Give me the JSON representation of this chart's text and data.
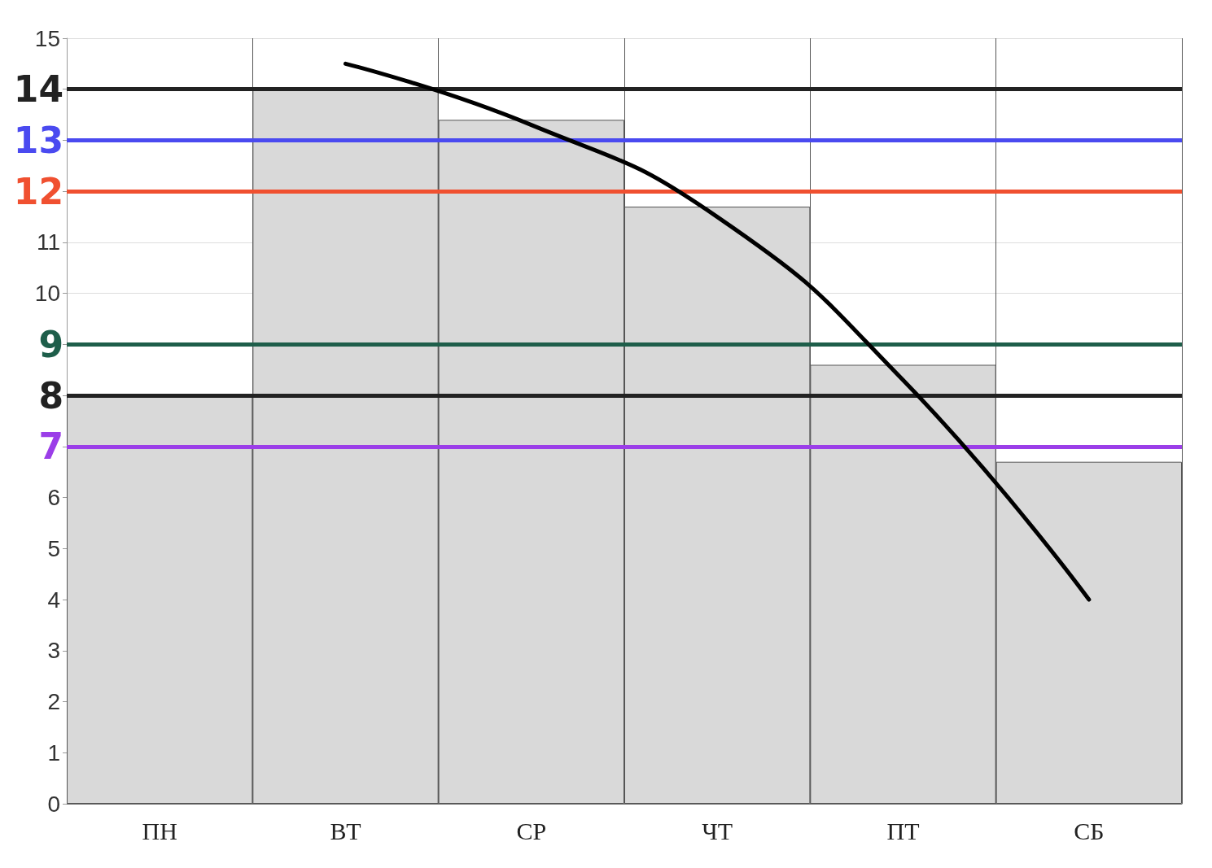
{
  "chart_data": {
    "type": "bar",
    "categories": [
      "ПН",
      "ВТ",
      "СР",
      "ЧТ",
      "ПТ",
      "СБ"
    ],
    "series": [
      {
        "color": "#d9d9d9",
        "values": [
          8,
          14,
          13.4,
          11.7,
          8.6,
          6.7
        ]
      },
      {
        "type": "line",
        "color": "#000000",
        "values": [
          null,
          14.5,
          13.3,
          11.5,
          8.3,
          4
        ],
        "marker": "none",
        "line_style": "solid"
      }
    ],
    "ylim": [
      0,
      15
    ],
    "yticks": [
      0,
      1,
      2,
      3,
      4,
      5,
      6,
      {
        "value": 7,
        "label": null
      },
      {
        "value": 8,
        "label": null
      },
      {
        "value": 9,
        "label": null
      },
      10,
      11,
      {
        "value": 12,
        "label": null
      },
      {
        "value": 13,
        "label": null
      },
      {
        "value": 14,
        "label": null
      },
      15
    ],
    "ref_lines": [
      {
        "axis": "y",
        "value": 14,
        "label": "14",
        "color": "#222222"
      },
      {
        "axis": "y",
        "value": 13,
        "label": "13",
        "color": "#4a4af0"
      },
      {
        "axis": "y",
        "value": 12,
        "label": "12",
        "color": "#f05030"
      },
      {
        "axis": "y",
        "value": 9,
        "label": "9",
        "color": "#1e5e4a"
      },
      {
        "axis": "y",
        "value": 8,
        "label": "8",
        "color": "#222222"
      },
      {
        "axis": "y",
        "value": 7,
        "label": "7",
        "color": "#9b3ee8"
      }
    ],
    "grid": true
  }
}
